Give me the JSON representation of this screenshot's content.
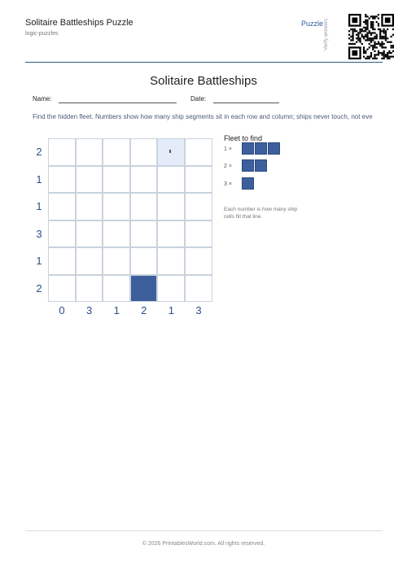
{
  "header": {
    "title": "Solitaire Battleships Puzzle",
    "category": "logic-puzzles",
    "tag": "Puzzle",
    "qr_caption": "Verify answers"
  },
  "worksheet": {
    "title": "Solitaire Battleships",
    "name_label": "Name:",
    "date_label": "Date:",
    "instructions": "Find the hidden fleet. Numbers show how many ship segments sit in each row and column; ships never touch, not eve"
  },
  "puzzle": {
    "row_clues": [
      2,
      1,
      1,
      3,
      1,
      2
    ],
    "column_clues": [
      0,
      3,
      1,
      2,
      1,
      3
    ]
  },
  "fleet": {
    "title": "Fleet to find",
    "ships": [
      {
        "count_label": "1 ×"
      },
      {
        "count_label": "2 ×"
      },
      {
        "count_label": "3 ×"
      }
    ],
    "note": "Each number is how many ship cells fill that line."
  },
  "footer": {
    "copyright": "© 2026 PrintablesWorld.com. All rights reserved."
  }
}
